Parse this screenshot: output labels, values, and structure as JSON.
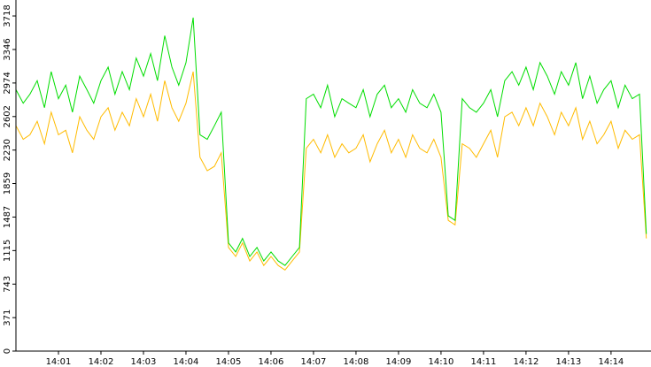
{
  "chart_data": {
    "type": "line",
    "x": [
      0,
      0.17,
      0.33,
      0.5,
      0.67,
      0.83,
      1,
      1.17,
      1.33,
      1.5,
      1.67,
      1.83,
      2,
      2.17,
      2.33,
      2.5,
      2.67,
      2.83,
      3,
      3.17,
      3.33,
      3.5,
      3.67,
      3.83,
      4,
      4.17,
      4.33,
      4.5,
      4.67,
      4.83,
      5,
      5.17,
      5.33,
      5.5,
      5.67,
      5.83,
      6,
      6.17,
      6.33,
      6.5,
      6.67,
      6.83,
      7,
      7.17,
      7.33,
      7.5,
      7.67,
      7.83,
      8,
      8.17,
      8.33,
      8.5,
      8.67,
      8.83,
      9,
      9.17,
      9.33,
      9.5,
      9.67,
      9.83,
      10,
      10.17,
      10.33,
      10.5,
      10.67,
      10.83,
      11,
      11.17,
      11.33,
      11.5,
      11.67,
      11.83,
      12,
      12.17,
      12.33,
      12.5,
      12.67,
      12.83,
      13,
      13.17,
      13.33,
      13.5,
      13.67,
      13.83,
      14,
      14.17,
      14.33,
      14.5,
      14.67,
      14.83
    ],
    "series": [
      {
        "color": "#ffbb00",
        "values": [
          2500,
          2350,
          2400,
          2550,
          2300,
          2650,
          2400,
          2450,
          2200,
          2600,
          2450,
          2350,
          2600,
          2700,
          2450,
          2650,
          2500,
          2800,
          2600,
          2850,
          2550,
          3000,
          2700,
          2550,
          2750,
          3100,
          2150,
          2000,
          2050,
          2200,
          1150,
          1050,
          1200,
          1000,
          1100,
          950,
          1050,
          950,
          900,
          1000,
          1100,
          2250,
          2350,
          2200,
          2400,
          2150,
          2300,
          2200,
          2250,
          2400,
          2100,
          2300,
          2450,
          2200,
          2350,
          2150,
          2400,
          2250,
          2200,
          2350,
          2150,
          1450,
          1400,
          2300,
          2250,
          2150,
          2300,
          2450,
          2150,
          2600,
          2650,
          2500,
          2700,
          2500,
          2750,
          2600,
          2400,
          2650,
          2500,
          2700,
          2350,
          2550,
          2300,
          2400,
          2550,
          2250,
          2450,
          2350,
          2400,
          1250
        ]
      },
      {
        "color": "#00dd00",
        "values": [
          2900,
          2750,
          2850,
          3000,
          2700,
          3100,
          2800,
          2950,
          2650,
          3050,
          2900,
          2750,
          3000,
          3150,
          2850,
          3100,
          2900,
          3250,
          3050,
          3300,
          3000,
          3500,
          3150,
          2950,
          3200,
          3700,
          2400,
          2350,
          2500,
          2650,
          1200,
          1100,
          1250,
          1050,
          1150,
          1000,
          1100,
          1000,
          950,
          1050,
          1150,
          2800,
          2850,
          2700,
          2950,
          2600,
          2800,
          2750,
          2700,
          2900,
          2600,
          2850,
          2950,
          2700,
          2800,
          2650,
          2900,
          2750,
          2700,
          2850,
          2650,
          1500,
          1450,
          2800,
          2700,
          2650,
          2750,
          2900,
          2600,
          3000,
          3100,
          2950,
          3150,
          2900,
          3200,
          3050,
          2850,
          3100,
          2950,
          3200,
          2800,
          3050,
          2750,
          2900,
          3000,
          2700,
          2950,
          2800,
          2850,
          1300
        ]
      }
    ],
    "xlim": [
      0,
      14.94
    ],
    "xticks": [
      {
        "value": 1,
        "label": "14:01"
      },
      {
        "value": 2,
        "label": "14:02"
      },
      {
        "value": 3,
        "label": "14:03"
      },
      {
        "value": 4,
        "label": "14:04"
      },
      {
        "value": 5,
        "label": "14:05"
      },
      {
        "value": 6,
        "label": "14:06"
      },
      {
        "value": 7,
        "label": "14:07"
      },
      {
        "value": 8,
        "label": "14:08"
      },
      {
        "value": 9,
        "label": "14:09"
      },
      {
        "value": 10,
        "label": "14:10"
      },
      {
        "value": 11,
        "label": "14:11"
      },
      {
        "value": 12,
        "label": "14:12"
      },
      {
        "value": 13,
        "label": "14:13"
      },
      {
        "value": 14,
        "label": "14:14"
      }
    ],
    "ylim": [
      0,
      3895
    ],
    "yticks": [
      0,
      371,
      743,
      1115,
      1487,
      1859,
      2230,
      2602,
      2974,
      3346,
      3718
    ]
  }
}
